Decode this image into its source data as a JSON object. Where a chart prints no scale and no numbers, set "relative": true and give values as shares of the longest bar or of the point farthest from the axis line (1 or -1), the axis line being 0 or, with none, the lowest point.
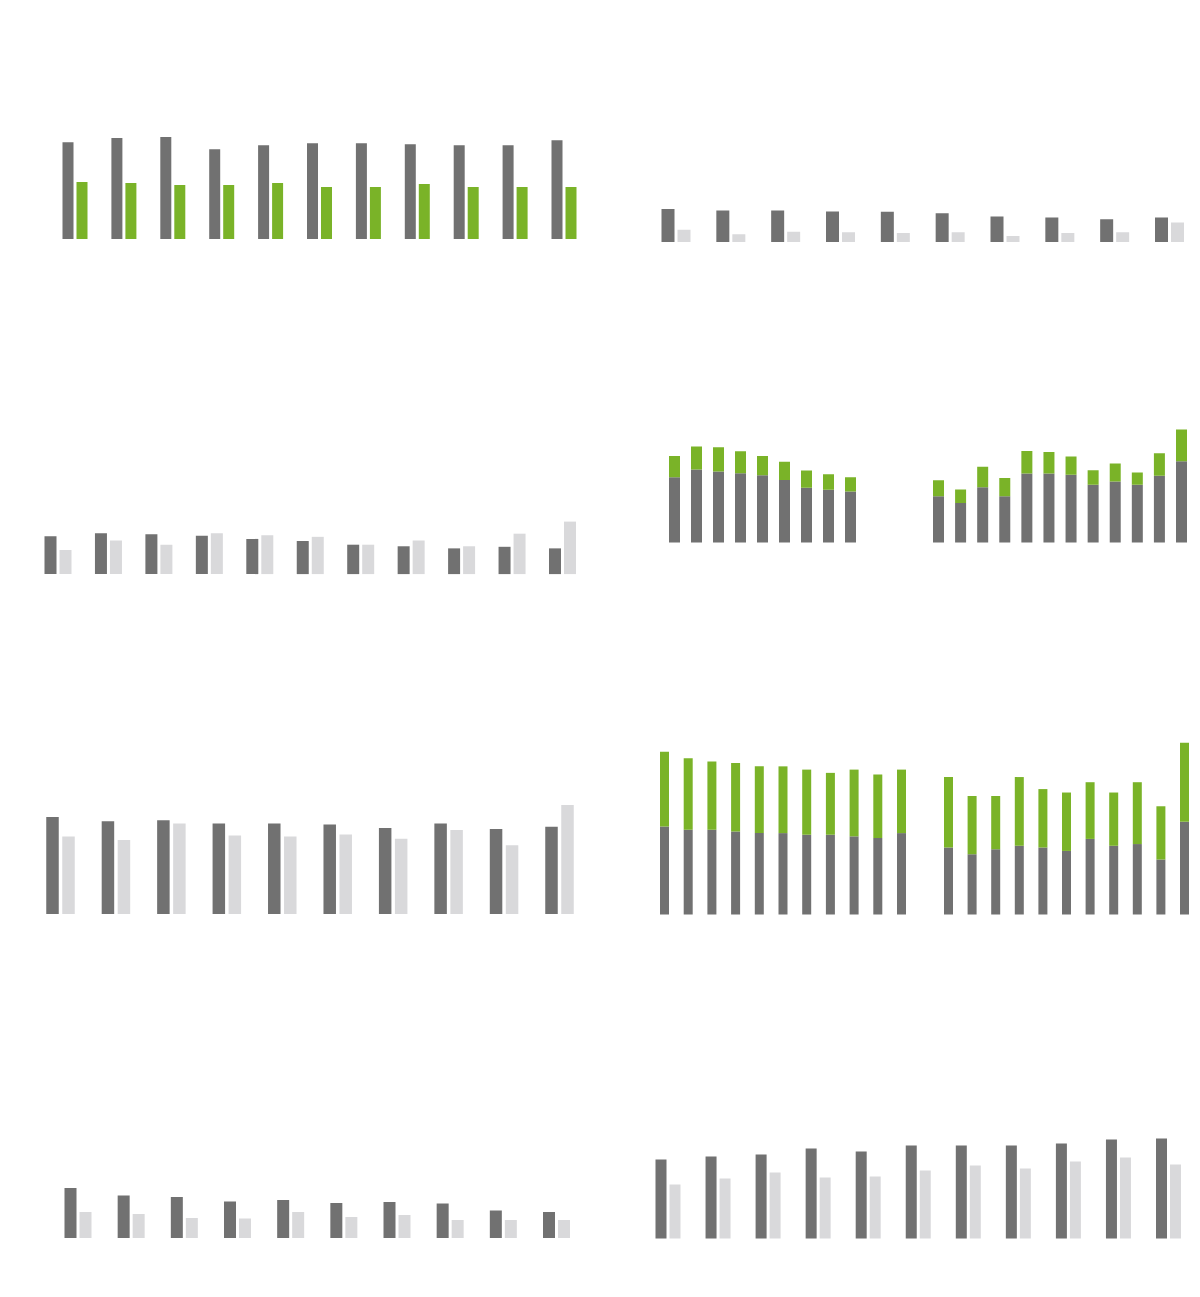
{
  "chart_data": [
    {
      "type": "bar",
      "relative": true,
      "categories": [
        null,
        null,
        null,
        null,
        null,
        null,
        null,
        null,
        null,
        null,
        null
      ],
      "series": [
        {
          "color": "#717171",
          "values": [
            0.95,
            0.99,
            1.0,
            0.88,
            0.92,
            0.94,
            0.94,
            0.93,
            0.92,
            0.92,
            0.97
          ]
        },
        {
          "color": "#7ab328",
          "values": [
            0.56,
            0.55,
            0.53,
            0.53,
            0.55,
            0.51,
            0.51,
            0.54,
            0.51,
            0.51,
            0.51
          ]
        }
      ]
    },
    {
      "type": "bar",
      "relative": true,
      "categories": [
        null,
        null,
        null,
        null,
        null,
        null,
        null,
        null,
        null,
        null
      ],
      "series": [
        {
          "color": "#717171",
          "values": [
            1.0,
            0.95,
            0.95,
            0.92,
            0.91,
            0.87,
            0.77,
            0.74,
            0.69,
            0.74
          ]
        },
        {
          "color": "#d9d9db",
          "values": [
            0.37,
            0.23,
            0.31,
            0.29,
            0.27,
            0.29,
            0.18,
            0.27,
            0.29,
            0.59
          ]
        }
      ]
    },
    {
      "type": "bar",
      "relative": true,
      "categories": [
        null,
        null,
        null,
        null,
        null,
        null,
        null,
        null,
        null,
        null,
        null
      ],
      "series": [
        {
          "color": "#717171",
          "values": [
            0.72,
            0.78,
            0.76,
            0.73,
            0.67,
            0.63,
            0.56,
            0.53,
            0.49,
            0.52,
            0.49
          ]
        },
        {
          "color": "#d9d9db",
          "values": [
            0.46,
            0.64,
            0.56,
            0.78,
            0.74,
            0.71,
            0.56,
            0.64,
            0.53,
            0.77,
            1.0
          ]
        }
      ]
    },
    {
      "type": "bar",
      "relative": true,
      "stacked": true,
      "categories": [
        null,
        null,
        null,
        null,
        null,
        null,
        null,
        null,
        null
      ],
      "series": [
        {
          "color": "#717171",
          "values": [
            0.68,
            0.76,
            0.74,
            0.72,
            0.7,
            0.65,
            0.57,
            0.55,
            0.53
          ]
        },
        {
          "color": "#7ab328",
          "values": [
            0.22,
            0.24,
            0.25,
            0.23,
            0.2,
            0.19,
            0.18,
            0.16,
            0.15
          ]
        }
      ]
    },
    {
      "type": "bar",
      "relative": true,
      "stacked": true,
      "categories": [
        null,
        null,
        null,
        null,
        null,
        null,
        null,
        null,
        null,
        null,
        null,
        null
      ],
      "series": [
        {
          "color": "#717171",
          "values": [
            0.41,
            0.35,
            0.49,
            0.41,
            0.61,
            0.61,
            0.6,
            0.51,
            0.54,
            0.51,
            0.59,
            0.72
          ]
        },
        {
          "color": "#7ab328",
          "values": [
            0.14,
            0.12,
            0.18,
            0.16,
            0.2,
            0.19,
            0.16,
            0.13,
            0.16,
            0.11,
            0.2,
            0.28
          ]
        }
      ]
    },
    {
      "type": "bar",
      "relative": true,
      "categories": [
        null,
        null,
        null,
        null,
        null,
        null,
        null,
        null,
        null,
        null
      ],
      "series": [
        {
          "color": "#717171",
          "values": [
            0.89,
            0.85,
            0.86,
            0.83,
            0.83,
            0.82,
            0.79,
            0.83,
            0.78,
            0.8
          ]
        },
        {
          "color": "#d9d9db",
          "values": [
            0.71,
            0.68,
            0.83,
            0.72,
            0.71,
            0.73,
            0.69,
            0.77,
            0.63,
            1.0
          ]
        }
      ]
    },
    {
      "type": "bar",
      "relative": true,
      "stacked": true,
      "categories": [
        null,
        null,
        null,
        null,
        null,
        null,
        null,
        null,
        null,
        null,
        null
      ],
      "series": [
        {
          "color": "#717171",
          "values": [
            0.54,
            0.52,
            0.52,
            0.51,
            0.5,
            0.5,
            0.49,
            0.49,
            0.48,
            0.47,
            0.5
          ]
        },
        {
          "color": "#7ab328",
          "values": [
            0.46,
            0.44,
            0.42,
            0.42,
            0.41,
            0.41,
            0.4,
            0.38,
            0.41,
            0.39,
            0.39
          ]
        }
      ]
    },
    {
      "type": "bar",
      "relative": true,
      "stacked": true,
      "categories": [
        null,
        null,
        null,
        null,
        null,
        null,
        null,
        null,
        null,
        null,
        null
      ],
      "series": [
        {
          "color": "#717171",
          "values": [
            0.39,
            0.35,
            0.38,
            0.4,
            0.39,
            0.37,
            0.44,
            0.4,
            0.41,
            0.32,
            0.54
          ]
        },
        {
          "color": "#7ab328",
          "values": [
            0.41,
            0.34,
            0.31,
            0.4,
            0.34,
            0.34,
            0.33,
            0.31,
            0.36,
            0.31,
            0.46
          ]
        }
      ]
    },
    {
      "type": "bar",
      "relative": true,
      "categories": [
        null,
        null,
        null,
        null,
        null,
        null,
        null,
        null,
        null,
        null
      ],
      "series": [
        {
          "color": "#717171",
          "values": [
            1.0,
            0.85,
            0.82,
            0.73,
            0.76,
            0.7,
            0.72,
            0.69,
            0.55,
            0.52
          ]
        },
        {
          "color": "#d9d9db",
          "values": [
            0.52,
            0.48,
            0.4,
            0.39,
            0.52,
            0.42,
            0.46,
            0.36,
            0.36,
            0.36
          ]
        }
      ]
    },
    {
      "type": "bar",
      "relative": true,
      "categories": [
        null,
        null,
        null,
        null,
        null,
        null,
        null,
        null,
        null,
        null,
        null
      ],
      "series": [
        {
          "color": "#717171",
          "values": [
            0.79,
            0.82,
            0.84,
            0.9,
            0.87,
            0.93,
            0.93,
            0.93,
            0.95,
            0.99,
            1.0
          ]
        },
        {
          "color": "#d9d9db",
          "values": [
            0.54,
            0.6,
            0.66,
            0.61,
            0.62,
            0.68,
            0.73,
            0.7,
            0.77,
            0.81,
            0.74
          ]
        }
      ]
    }
  ]
}
